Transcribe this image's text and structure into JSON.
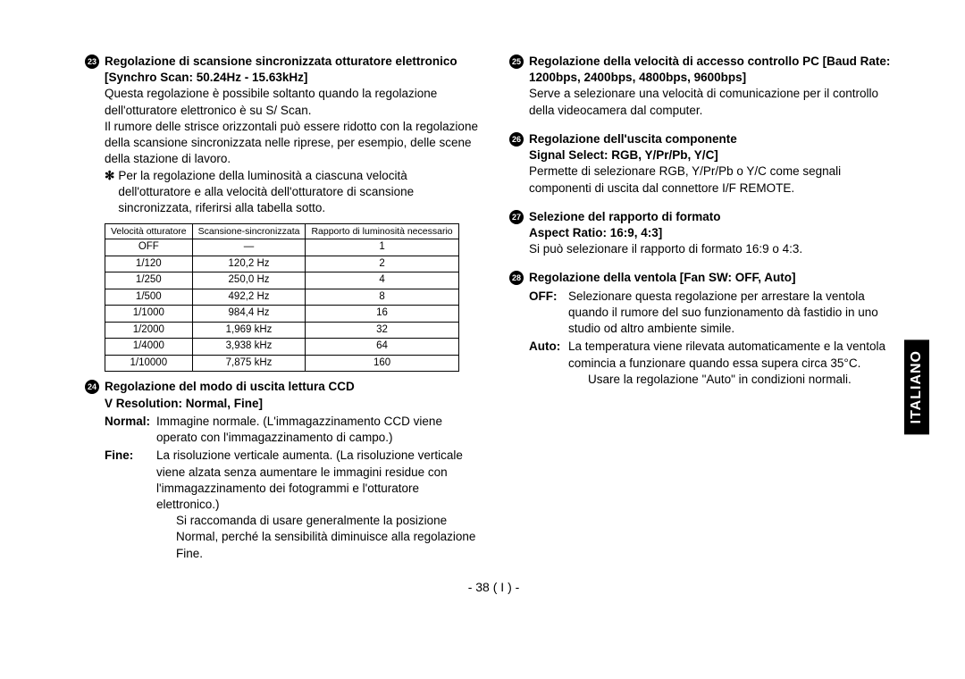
{
  "left": {
    "item23": {
      "num": "23",
      "title": "Regolazione di scansione sincronizzata otturatore elettronico [Synchro Scan: 50.24Hz - 15.63kHz]",
      "body1": "Questa regolazione è possibile soltanto quando la regolazione dell'otturatore elettronico è su S/ Scan.",
      "body2": "Il rumore delle strisce orizzontali può essere ridotto con la regolazione della scansione sincronizzata nelle riprese, per esempio, delle scene della stazione di lavoro.",
      "star": "Per la regolazione della luminosità a ciascuna velocità dell'otturatore e alla velocità dell'otturatore di scansione sincronizzata, riferirsi alla tabella sotto."
    },
    "table": {
      "headers": [
        "Velocità otturatore",
        "Scansione-sincronizzata",
        "Rapporto di luminosità necessario"
      ],
      "rows": [
        [
          "OFF",
          "—",
          "1"
        ],
        [
          "1/120",
          "120,2 Hz",
          "2"
        ],
        [
          "1/250",
          "250,0 Hz",
          "4"
        ],
        [
          "1/500",
          "492,2 Hz",
          "8"
        ],
        [
          "1/1000",
          "984,4 Hz",
          "16"
        ],
        [
          "1/2000",
          "1,969 kHz",
          "32"
        ],
        [
          "1/4000",
          "3,938 kHz",
          "64"
        ],
        [
          "1/10000",
          "7,875 kHz",
          "160"
        ]
      ]
    },
    "item24": {
      "num": "24",
      "title": "Regolazione del modo di uscita lettura CCD",
      "subtitle": "V Resolution: Normal, Fine]",
      "normal_label": "Normal:",
      "normal_text": "Immagine normale. (L'immagazzinamento CCD viene operato con l'immagazzinamento di campo.)",
      "fine_label": "Fine:",
      "fine_text": "La risoluzione verticale aumenta. (La risoluzione verticale viene alzata senza aumentare le immagini residue con l'immagazzinamento dei fotogrammi e l'otturatore elettronico.)",
      "fine_cont": "Si raccomanda di usare generalmente la posizione Normal, perché la sensibilità diminuisce alla regolazione Fine."
    }
  },
  "right": {
    "item25": {
      "num": "25",
      "title": "Regolazione della velocità di accesso controllo PC [Baud Rate: 1200bps, 2400bps, 4800bps, 9600bps]",
      "body": "Serve a selezionare una velocità di comunicazione per il controllo della videocamera dal computer."
    },
    "item26": {
      "num": "26",
      "title": "Regolazione dell'uscita componente",
      "subtitle": "Signal Select: RGB, Y/Pr/Pb, Y/C]",
      "body": "Permette di selezionare RGB, Y/Pr/Pb o Y/C come segnali componenti di uscita dal connettore I/F REMOTE."
    },
    "item27": {
      "num": "27",
      "title": "Selezione del rapporto di formato",
      "subtitle": "Aspect Ratio: 16:9, 4:3]",
      "body": "Si può selezionare il rapporto di formato 16:9 o 4:3."
    },
    "item28": {
      "num": "28",
      "title": "Regolazione della ventola [Fan SW: OFF, Auto]",
      "off_label": "OFF:",
      "off_text": "Selezionare questa regolazione per arrestare la ventola quando il rumore del suo funzionamento dà fastidio in uno studio od altro ambiente simile.",
      "auto_label": "Auto:",
      "auto_text": "La temperatura viene rilevata automaticamente e la ventola comincia a funzionare quando essa supera circa 35°C.",
      "auto_cont": "Usare la regolazione \"Auto\" in condizioni normali."
    }
  },
  "page_number": "- 38 ( I ) -",
  "lang_tab": "ITALIANO"
}
